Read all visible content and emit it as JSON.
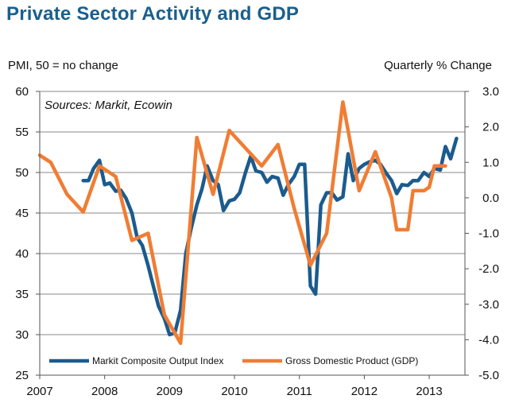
{
  "chart_data": {
    "type": "line",
    "title": "Private Sector Activity and GDP",
    "left_axis_label": "PMI, 50 = no change",
    "right_axis_label": "Quarterly % Change",
    "annotation": "Sources: Markit, Ecowin",
    "x_ticks": [
      "2007",
      "2008",
      "2009",
      "2010",
      "2011",
      "2012",
      "2013"
    ],
    "xlim": [
      2007.0,
      2013.55
    ],
    "y_left_ticks": [
      "25",
      "30",
      "35",
      "40",
      "45",
      "50",
      "55",
      "60"
    ],
    "y_left_lim": [
      25,
      60
    ],
    "y_right_ticks": [
      "3.0",
      "2.0",
      "1.0",
      "0.0",
      "-1.0",
      "-2.0",
      "-3.0",
      "-4.0",
      "-5.0"
    ],
    "y_right_lim": [
      -5.0,
      3.0
    ],
    "grid": "horizontal",
    "legend_position": "bottom",
    "series": [
      {
        "name": "Markit Composite Output Index",
        "axis": "left",
        "color": "#1b5b8e",
        "x": [
          2007.67,
          2007.75,
          2007.83,
          2007.92,
          2008.0,
          2008.08,
          2008.17,
          2008.25,
          2008.33,
          2008.42,
          2008.5,
          2008.58,
          2008.67,
          2008.75,
          2008.83,
          2008.92,
          2009.0,
          2009.08,
          2009.17,
          2009.25,
          2009.33,
          2009.42,
          2009.5,
          2009.58,
          2009.67,
          2009.75,
          2009.83,
          2009.92,
          2010.0,
          2010.08,
          2010.17,
          2010.25,
          2010.33,
          2010.42,
          2010.5,
          2010.58,
          2010.67,
          2010.75,
          2010.83,
          2010.92,
          2011.0,
          2011.08,
          2011.17,
          2011.25,
          2011.33,
          2011.42,
          2011.5,
          2011.58,
          2011.67,
          2011.75,
          2011.83,
          2011.92,
          2012.0,
          2012.08,
          2012.17,
          2012.25,
          2012.33,
          2012.42,
          2012.5,
          2012.58,
          2012.67,
          2012.75,
          2012.83,
          2012.92,
          2013.0,
          2013.08,
          2013.17,
          2013.25,
          2013.33,
          2013.42
        ],
        "values": [
          49.0,
          49.0,
          50.5,
          51.5,
          48.5,
          48.7,
          47.7,
          47.8,
          46.8,
          45.0,
          42.0,
          41.0,
          38.5,
          36.0,
          33.5,
          32.0,
          30.0,
          30.2,
          33.0,
          40.0,
          43.0,
          46.0,
          48.0,
          50.8,
          49.0,
          48.5,
          45.3,
          46.5,
          46.7,
          47.5,
          50.0,
          52.0,
          50.2,
          50.0,
          48.8,
          49.5,
          49.3,
          47.2,
          48.5,
          49.5,
          51.0,
          51.0,
          36.0,
          35.0,
          46.0,
          47.5,
          47.5,
          46.6,
          47.0,
          52.3,
          49.0,
          50.5,
          51.0,
          51.3,
          51.5,
          51.0,
          50.0,
          49.0,
          47.4,
          48.5,
          48.4,
          49.0,
          49.0,
          50.0,
          49.5,
          50.5,
          50.3,
          53.2,
          51.7,
          54.2
        ]
      },
      {
        "name": "Gross Domestic Product (GDP)",
        "axis": "right",
        "color": "#f07d33",
        "x": [
          2007.0,
          2007.17,
          2007.42,
          2007.67,
          2007.92,
          2008.17,
          2008.42,
          2008.67,
          2008.92,
          2009.17,
          2009.42,
          2009.67,
          2009.92,
          2010.17,
          2010.42,
          2010.67,
          2010.92,
          2011.17,
          2011.42,
          2011.67,
          2011.92,
          2012.17,
          2012.42,
          2012.5,
          2012.67,
          2012.75,
          2012.92,
          2013.0,
          2013.08,
          2013.25
        ],
        "values": [
          1.2,
          1.0,
          0.1,
          -0.4,
          0.9,
          0.6,
          -1.2,
          -1.0,
          -3.3,
          -4.1,
          1.7,
          0.1,
          1.9,
          1.4,
          0.9,
          1.5,
          -0.3,
          -1.9,
          -1.0,
          2.7,
          0.2,
          1.3,
          0.0,
          -0.9,
          -0.9,
          0.2,
          0.2,
          0.3,
          0.9,
          0.9
        ]
      }
    ]
  }
}
